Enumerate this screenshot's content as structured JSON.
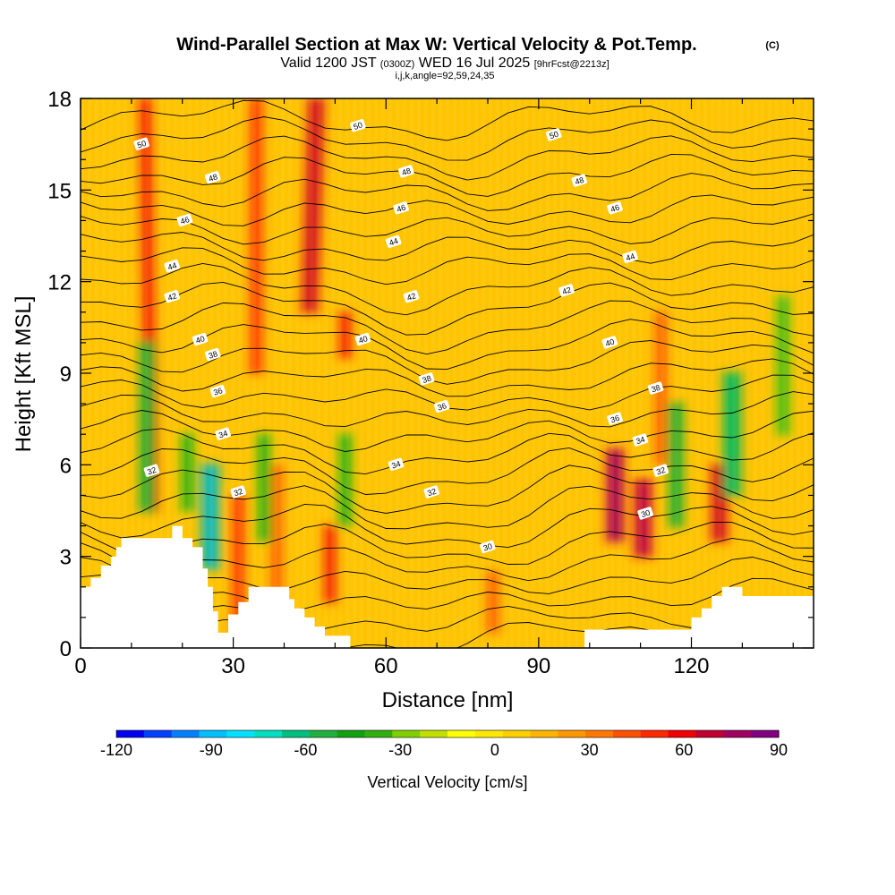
{
  "title": {
    "main": "Wind-Parallel Section at Max W: Vertical Velocity & Pot.Temp.",
    "copyright": "(C)",
    "valid_prefix": "Valid 1200 JST",
    "valid_utc": "(0300Z)",
    "valid_date": "WED 16 Jul 2025",
    "forecast": "[9hrFcst@2213z]",
    "section_info": "i,j,k,angle=92,59,24,35"
  },
  "chart_data": {
    "type": "heatmap",
    "xlabel": "Distance [nm]",
    "ylabel": "Height [Kft MSL]",
    "xlim": [
      0,
      144
    ],
    "ylim": [
      0,
      18
    ],
    "x_ticks": [
      "0",
      "30",
      "60",
      "90",
      "120"
    ],
    "x_tick_values": [
      0,
      30,
      60,
      90,
      120
    ],
    "y_ticks": [
      "0",
      "3",
      "6",
      "9",
      "12",
      "15",
      "18"
    ],
    "y_tick_values": [
      0,
      3,
      6,
      9,
      12,
      15,
      18
    ],
    "colorbar": {
      "label": "Vertical Velocity [cm/s]",
      "range": [
        -120,
        90
      ],
      "tick_labels": [
        "-120",
        "-90",
        "-60",
        "-30",
        "0",
        "30",
        "60",
        "90"
      ],
      "tick_values": [
        -120,
        -90,
        -60,
        -30,
        0,
        30,
        60,
        90
      ],
      "colors": [
        "#0000f0",
        "#0040ff",
        "#0080ff",
        "#00c0ff",
        "#00e0ff",
        "#00e0c0",
        "#00c080",
        "#20b040",
        "#10a010",
        "#30b010",
        "#80d000",
        "#c0e000",
        "#ffff00",
        "#ffe800",
        "#ffd000",
        "#ffb400",
        "#ff9800",
        "#ff7800",
        "#ff5000",
        "#ff2800",
        "#f00000",
        "#c00030",
        "#a00060",
        "#800080"
      ]
    },
    "updrafts": [
      {
        "x": 14,
        "y0": 4.5,
        "y1": 18,
        "w": 60,
        "lean": -5
      },
      {
        "x": 31,
        "y0": 0.3,
        "y1": 5,
        "w": 50
      },
      {
        "x": 34.5,
        "y0": 9,
        "y1": 18,
        "w": 50
      },
      {
        "x": 38.5,
        "y0": 1,
        "y1": 6,
        "w": 45
      },
      {
        "x": 45,
        "y0": 11,
        "y1": 18,
        "w": 65,
        "lean": 5
      },
      {
        "x": 52,
        "y0": 9.5,
        "y1": 11,
        "w": 60
      },
      {
        "x": 49,
        "y0": 1.5,
        "y1": 4,
        "w": 55
      },
      {
        "x": 81,
        "y0": 0.5,
        "y1": 2.5,
        "w": 40
      },
      {
        "x": 105,
        "y0": 3.5,
        "y1": 6.5,
        "w": 90
      },
      {
        "x": 110.5,
        "y0": 3,
        "y1": 5.5,
        "w": 80
      },
      {
        "x": 114,
        "y0": 6,
        "y1": 11,
        "w": 45
      },
      {
        "x": 125.5,
        "y0": 3.5,
        "y1": 6,
        "w": 65
      }
    ],
    "downdrafts": [
      {
        "x": 13,
        "y0": 4.5,
        "y1": 10,
        "w": -55
      },
      {
        "x": 21,
        "y0": 4.5,
        "y1": 7,
        "w": -45
      },
      {
        "x": 25.5,
        "y0": 2.6,
        "y1": 6,
        "w": -90
      },
      {
        "x": 36,
        "y0": 3.5,
        "y1": 7,
        "w": -45
      },
      {
        "x": 52,
        "y0": 4,
        "y1": 7,
        "w": -45
      },
      {
        "x": 117,
        "y0": 4,
        "y1": 8,
        "w": -55
      },
      {
        "x": 128,
        "y0": 5,
        "y1": 9,
        "w": -65
      },
      {
        "x": 138,
        "y0": 7,
        "y1": 11.5,
        "w": -40
      }
    ],
    "theta_contour_labels": [
      {
        "t": "50",
        "x": 12,
        "y": 16.5
      },
      {
        "t": "50",
        "x": 54.5,
        "y": 17.1
      },
      {
        "t": "50",
        "x": 93,
        "y": 16.8
      },
      {
        "t": "48",
        "x": 26,
        "y": 15.4
      },
      {
        "t": "48",
        "x": 64,
        "y": 15.6
      },
      {
        "t": "48",
        "x": 98,
        "y": 15.3
      },
      {
        "t": "46",
        "x": 20.5,
        "y": 14.0
      },
      {
        "t": "46",
        "x": 63,
        "y": 14.4
      },
      {
        "t": "46",
        "x": 105,
        "y": 14.4
      },
      {
        "t": "44",
        "x": 18,
        "y": 12.5
      },
      {
        "t": "44",
        "x": 61.5,
        "y": 13.3
      },
      {
        "t": "44",
        "x": 108,
        "y": 12.8
      },
      {
        "t": "42",
        "x": 18,
        "y": 11.5
      },
      {
        "t": "42",
        "x": 65,
        "y": 11.5
      },
      {
        "t": "42",
        "x": 95.5,
        "y": 11.7
      },
      {
        "t": "40",
        "x": 23.5,
        "y": 10.1
      },
      {
        "t": "40",
        "x": 55.5,
        "y": 10.1
      },
      {
        "t": "40",
        "x": 104,
        "y": 10.0
      },
      {
        "t": "38",
        "x": 26,
        "y": 9.6
      },
      {
        "t": "38",
        "x": 68,
        "y": 8.8
      },
      {
        "t": "38",
        "x": 113,
        "y": 8.5
      },
      {
        "t": "36",
        "x": 27,
        "y": 8.4
      },
      {
        "t": "36",
        "x": 71,
        "y": 7.9
      },
      {
        "t": "36",
        "x": 105,
        "y": 7.5
      },
      {
        "t": "34",
        "x": 28,
        "y": 7.0
      },
      {
        "t": "34",
        "x": 62,
        "y": 6.0
      },
      {
        "t": "34",
        "x": 110,
        "y": 6.8
      },
      {
        "t": "32",
        "x": 14,
        "y": 5.8
      },
      {
        "t": "32",
        "x": 31,
        "y": 5.1
      },
      {
        "t": "32",
        "x": 69,
        "y": 5.1
      },
      {
        "t": "32",
        "x": 114,
        "y": 5.8
      },
      {
        "t": "30",
        "x": 80,
        "y": 3.3
      },
      {
        "t": "30",
        "x": 111,
        "y": 4.4
      }
    ]
  }
}
